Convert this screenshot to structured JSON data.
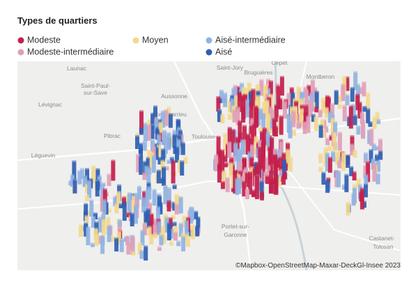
{
  "title": "Types de quartiers",
  "legend": [
    {
      "label": "Modeste",
      "color": "#c3204c"
    },
    {
      "label": "Modeste-intermédiaire",
      "color": "#dfa0b8"
    },
    {
      "label": "Moyen",
      "color": "#f2d98e"
    },
    {
      "label": "Aisé-intermédiaire",
      "color": "#92b3e2"
    },
    {
      "label": "Aisé",
      "color": "#2f5fb3"
    }
  ],
  "map": {
    "places": [
      {
        "label": "Launac"
      },
      {
        "label": "Saint-Paul-"
      },
      {
        "label": "sur-Save"
      },
      {
        "label": "Lévignac"
      },
      {
        "label": "Aussonne"
      },
      {
        "label": "Cornebarrieu"
      },
      {
        "label": "Pibrac"
      },
      {
        "label": "Léguevin"
      },
      {
        "label": "Saint-Jory"
      },
      {
        "label": "Bruguières"
      },
      {
        "label": "Cépet"
      },
      {
        "label": "Montberon"
      },
      {
        "label": "Toulouse-..."
      },
      {
        "label": "Portet-sur-"
      },
      {
        "label": "Garonne"
      },
      {
        "label": "Castanet-"
      },
      {
        "label": "Tolosan"
      }
    ],
    "attribution": "©Mapbox-OpenStreetMap-Maxar-DeckGl-Insee 2023"
  }
}
